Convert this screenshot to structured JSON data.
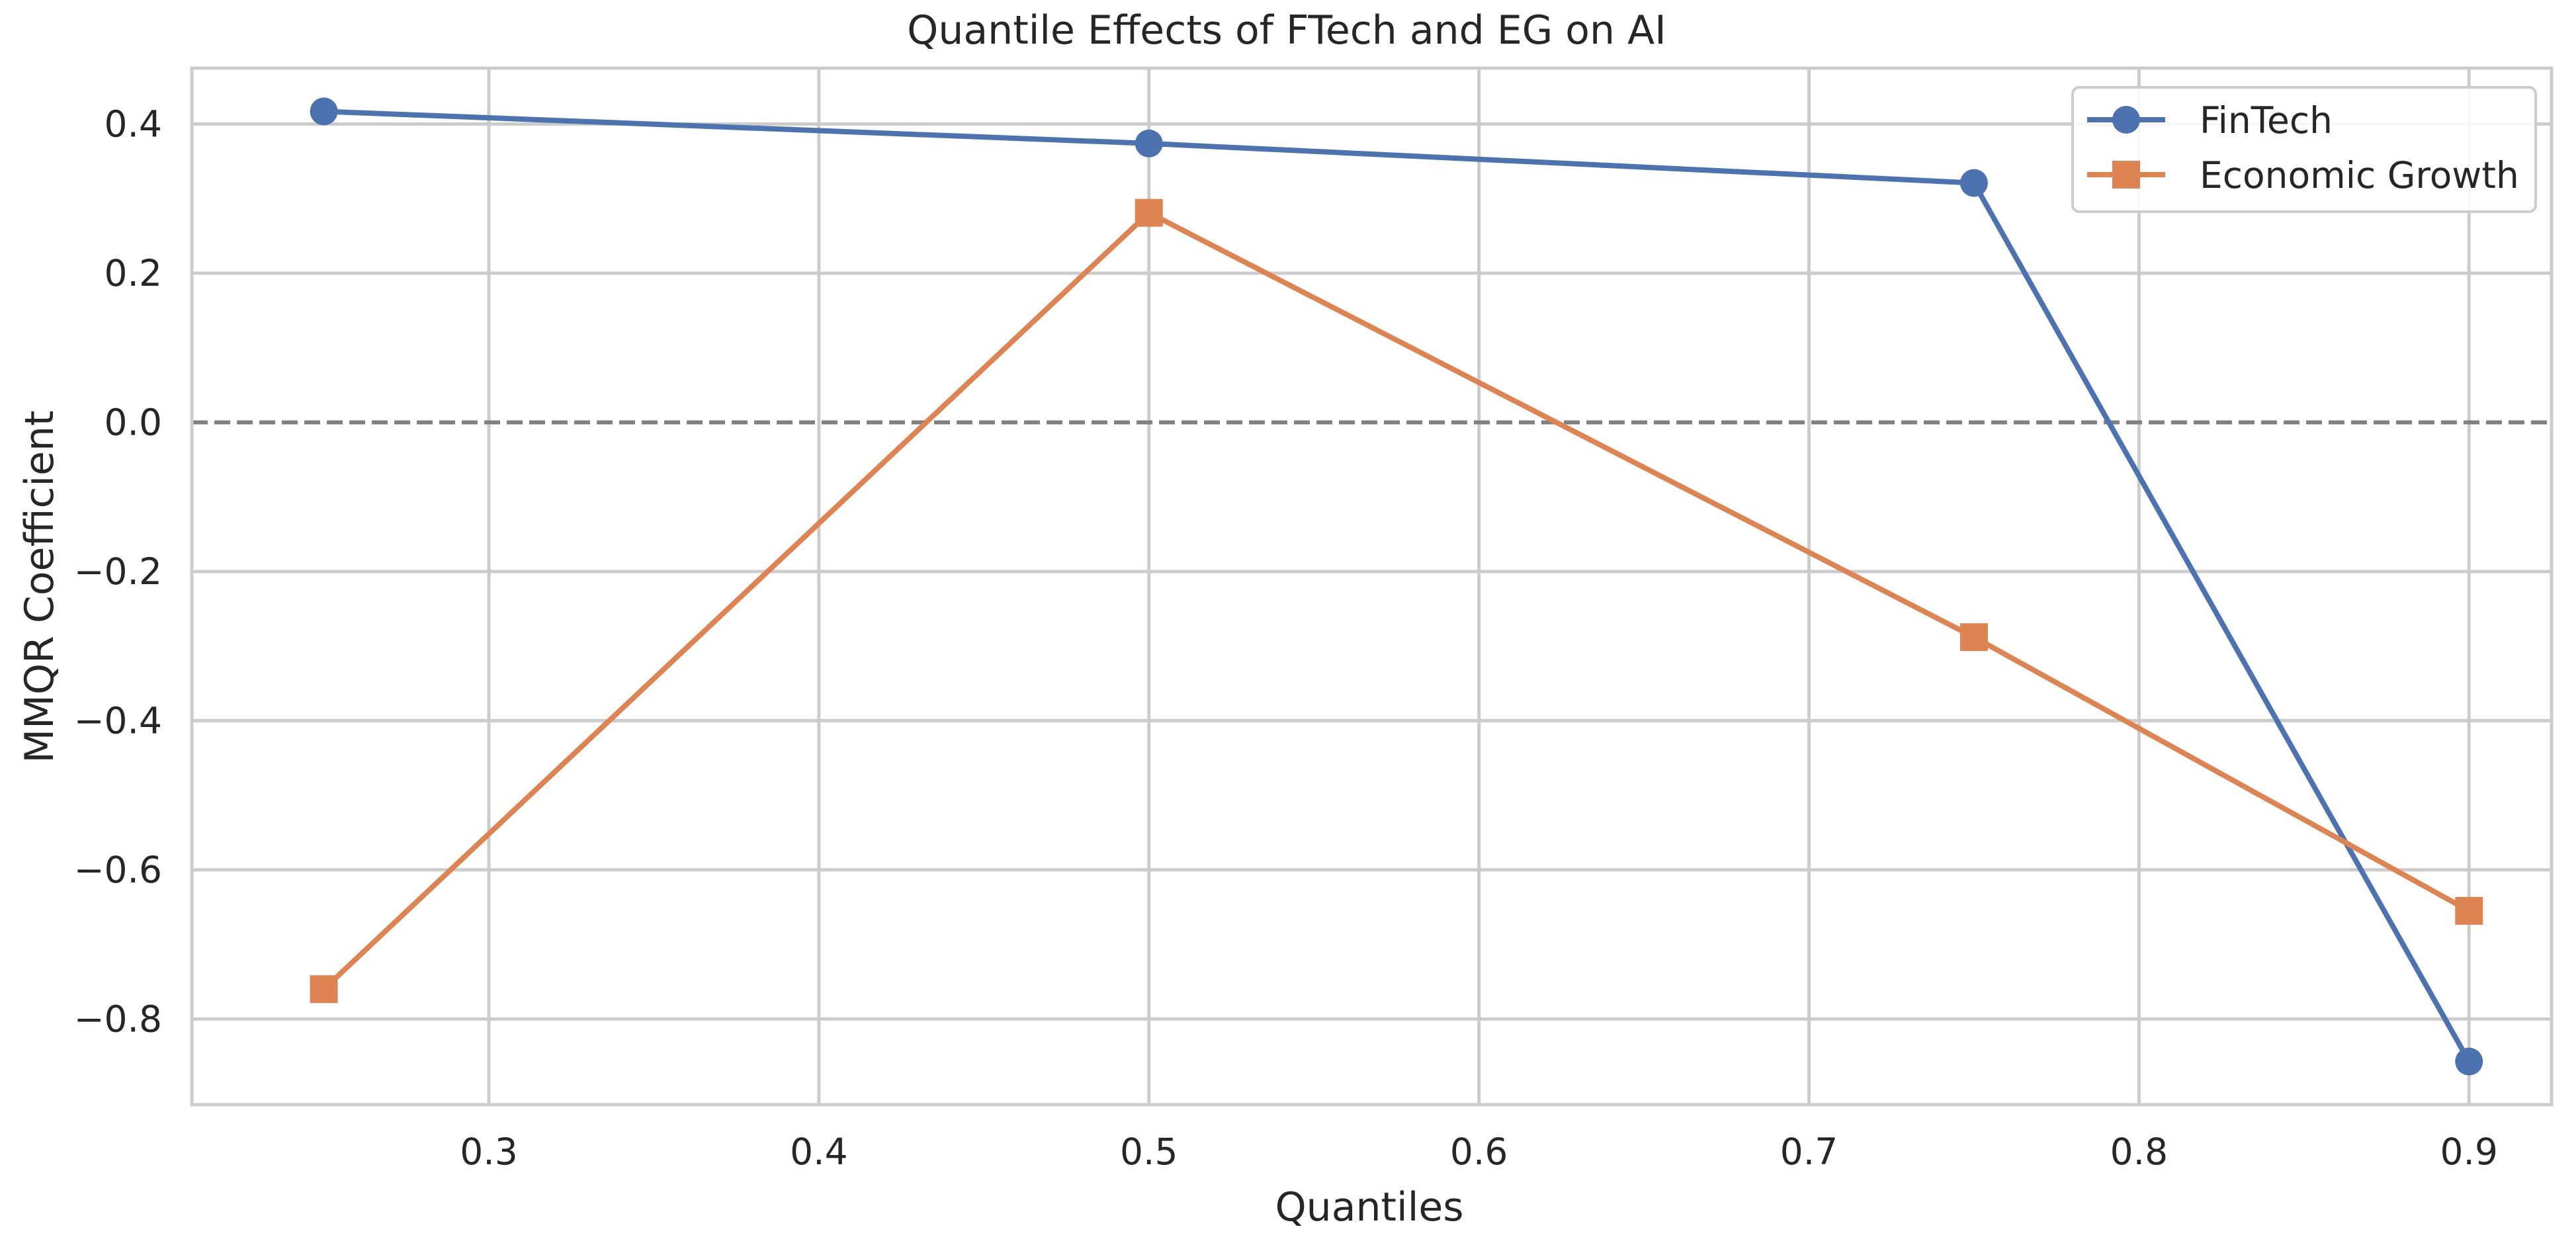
{
  "chart_data": {
    "type": "line",
    "title": "Quantile Effects of FTech and EG on AI",
    "xlabel": "Quantiles",
    "ylabel": "MMQR Coefficient",
    "xlim": [
      0.21,
      0.925
    ],
    "ylim": [
      -0.915,
      0.475
    ],
    "xticks": [
      0.3,
      0.4,
      0.5,
      0.6,
      0.7,
      0.8,
      0.9
    ],
    "xtick_labels": [
      "0.3",
      "0.4",
      "0.5",
      "0.6",
      "0.7",
      "0.8",
      "0.9"
    ],
    "yticks": [
      0.4,
      0.2,
      0.0,
      -0.2,
      -0.4,
      -0.6,
      -0.8
    ],
    "ytick_labels": [
      "0.4",
      "0.2",
      "0.0",
      "−0.2",
      "−0.4",
      "−0.6",
      "−0.8"
    ],
    "grid": true,
    "reference_line": {
      "y": 0.0,
      "style": "dashed",
      "color": "#808080"
    },
    "legend": {
      "position": "top-right"
    },
    "x": [
      0.25,
      0.5,
      0.75,
      0.9
    ],
    "series": [
      {
        "name": "FinTech",
        "marker": "circle",
        "color": "#4c72b0",
        "values": [
          0.417,
          0.374,
          0.321,
          -0.857
        ]
      },
      {
        "name": "Economic Growth",
        "marker": "square",
        "color": "#dd8452",
        "values": [
          -0.76,
          0.281,
          -0.288,
          -0.655
        ]
      }
    ]
  }
}
